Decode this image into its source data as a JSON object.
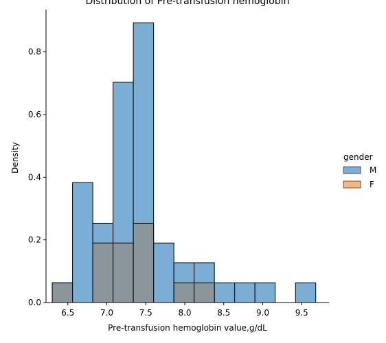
{
  "chart_data": {
    "type": "histogram",
    "title": "Distribution of Pre-transfusion hemoglobin",
    "xlabel": "Pre-transfusion hemoglobin value,g/dL",
    "ylabel": "Density",
    "xlim": [
      6.22,
      9.85
    ],
    "ylim": [
      0,
      0.935
    ],
    "x_ticks": [
      6.5,
      7.0,
      7.5,
      8.0,
      8.5,
      9.0,
      9.5
    ],
    "x_tick_labels": [
      "6.5",
      "7.0",
      "7.5",
      "8.0",
      "8.5",
      "9.0",
      "9.5"
    ],
    "y_ticks": [
      0,
      0.2,
      0.4,
      0.6,
      0.8
    ],
    "y_tick_labels": [
      "0.0",
      "0.2",
      "0.4",
      "0.6",
      "0.8"
    ],
    "grid": false,
    "legend": {
      "title": "gender",
      "placement": "right"
    },
    "bin_edges": [
      6.3,
      6.56,
      6.82,
      7.08,
      7.34,
      7.6,
      7.86,
      8.12,
      8.38,
      8.64,
      8.9,
      9.16,
      9.42,
      9.68
    ],
    "series": [
      {
        "name": "M",
        "color": "#7aaed4",
        "values": [
          0.063,
          0.383,
          0.253,
          0.703,
          0.893,
          0.19,
          0.127,
          0.127,
          0.063,
          0.063,
          0.063,
          0,
          0.063
        ]
      },
      {
        "name": "F",
        "color": "#f7b784",
        "values": [
          0.063,
          0,
          0.19,
          0.19,
          0.253,
          0,
          0.063,
          0.063,
          0,
          0,
          0,
          0,
          0
        ]
      }
    ],
    "overlap_color": "#8a969c"
  }
}
